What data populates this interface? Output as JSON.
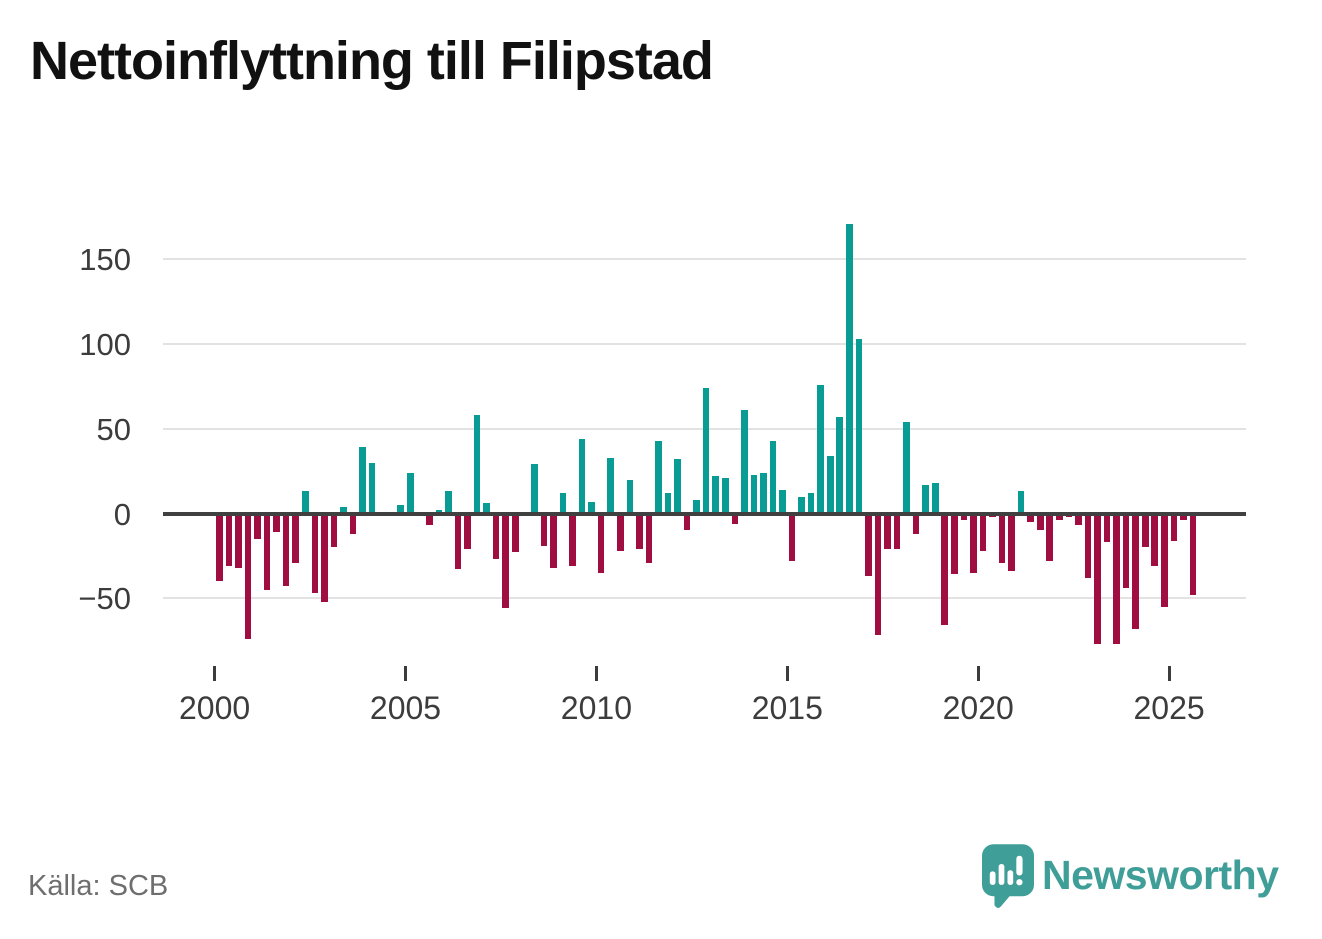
{
  "title": "Nettoinflyttning till Filipstad",
  "source_label": "Källa: SCB",
  "branding": {
    "name": "Newsworthy",
    "logo_icon": "speech-bubble-bar-chart-icon",
    "color": "#3f9e97"
  },
  "colors": {
    "positive_bar": "#089c95",
    "negative_bar": "#a00d40",
    "gridline": "#e2e2e2",
    "zero_line": "#404040",
    "axis_text": "#3c3c3c",
    "title_text": "#111111",
    "source_text": "#6e6e6e"
  },
  "chart_data": {
    "type": "bar",
    "title": "Nettoinflyttning till Filipstad",
    "xlabel": "",
    "ylabel": "",
    "x_unit": "quarter",
    "start_period": "2000-Q1",
    "end_period": "2025-Q3",
    "grid": true,
    "legend": false,
    "y_ticks": [
      -50,
      0,
      50,
      100,
      150
    ],
    "y_tick_labels": [
      "−50",
      "0",
      "50",
      "100",
      "150"
    ],
    "x_tick_years": [
      2000,
      2005,
      2010,
      2015,
      2020,
      2025
    ],
    "x_tick_labels": [
      "2000",
      "2005",
      "2010",
      "2015",
      "2020",
      "2025"
    ],
    "ylim": [
      -85,
      180
    ],
    "values_by_year": [
      {
        "year": 2000,
        "q": [
          -40,
          -31,
          -32,
          -74
        ]
      },
      {
        "year": 2001,
        "q": [
          -15,
          -45,
          -11,
          -43
        ]
      },
      {
        "year": 2002,
        "q": [
          -29,
          13,
          -47,
          -52
        ]
      },
      {
        "year": 2003,
        "q": [
          -20,
          4,
          -12,
          39
        ]
      },
      {
        "year": 2004,
        "q": [
          30,
          0,
          0,
          5
        ]
      },
      {
        "year": 2005,
        "q": [
          24,
          0,
          -7,
          2
        ]
      },
      {
        "year": 2006,
        "q": [
          13,
          -33,
          -21,
          58
        ]
      },
      {
        "year": 2007,
        "q": [
          6,
          -27,
          -56,
          -23
        ]
      },
      {
        "year": 2008,
        "q": [
          0,
          29,
          -19,
          -32
        ]
      },
      {
        "year": 2009,
        "q": [
          12,
          -31,
          44,
          7
        ]
      },
      {
        "year": 2010,
        "q": [
          -35,
          33,
          -22,
          20
        ]
      },
      {
        "year": 2011,
        "q": [
          -21,
          -29,
          43,
          12
        ]
      },
      {
        "year": 2012,
        "q": [
          32,
          -10,
          8,
          74
        ]
      },
      {
        "year": 2013,
        "q": [
          22,
          21,
          -6,
          61
        ]
      },
      {
        "year": 2014,
        "q": [
          23,
          24,
          43,
          14
        ]
      },
      {
        "year": 2015,
        "q": [
          -28,
          10,
          12,
          76
        ]
      },
      {
        "year": 2016,
        "q": [
          34,
          57,
          171,
          103
        ]
      },
      {
        "year": 2017,
        "q": [
          -37,
          -72,
          -21,
          -21
        ]
      },
      {
        "year": 2018,
        "q": [
          54,
          -12,
          17,
          18
        ]
      },
      {
        "year": 2019,
        "q": [
          -66,
          -36,
          -4,
          -35
        ]
      },
      {
        "year": 2020,
        "q": [
          -22,
          -2,
          -29,
          -34
        ]
      },
      {
        "year": 2021,
        "q": [
          13,
          -5,
          -10,
          -28
        ]
      },
      {
        "year": 2022,
        "q": [
          -4,
          -2,
          -7,
          -38
        ]
      },
      {
        "year": 2023,
        "q": [
          -77,
          -17,
          -77,
          -44
        ]
      },
      {
        "year": 2024,
        "q": [
          -68,
          -20,
          -31,
          -55
        ]
      },
      {
        "year": 2025,
        "q": [
          -16,
          -4,
          -48,
          null
        ]
      }
    ]
  }
}
